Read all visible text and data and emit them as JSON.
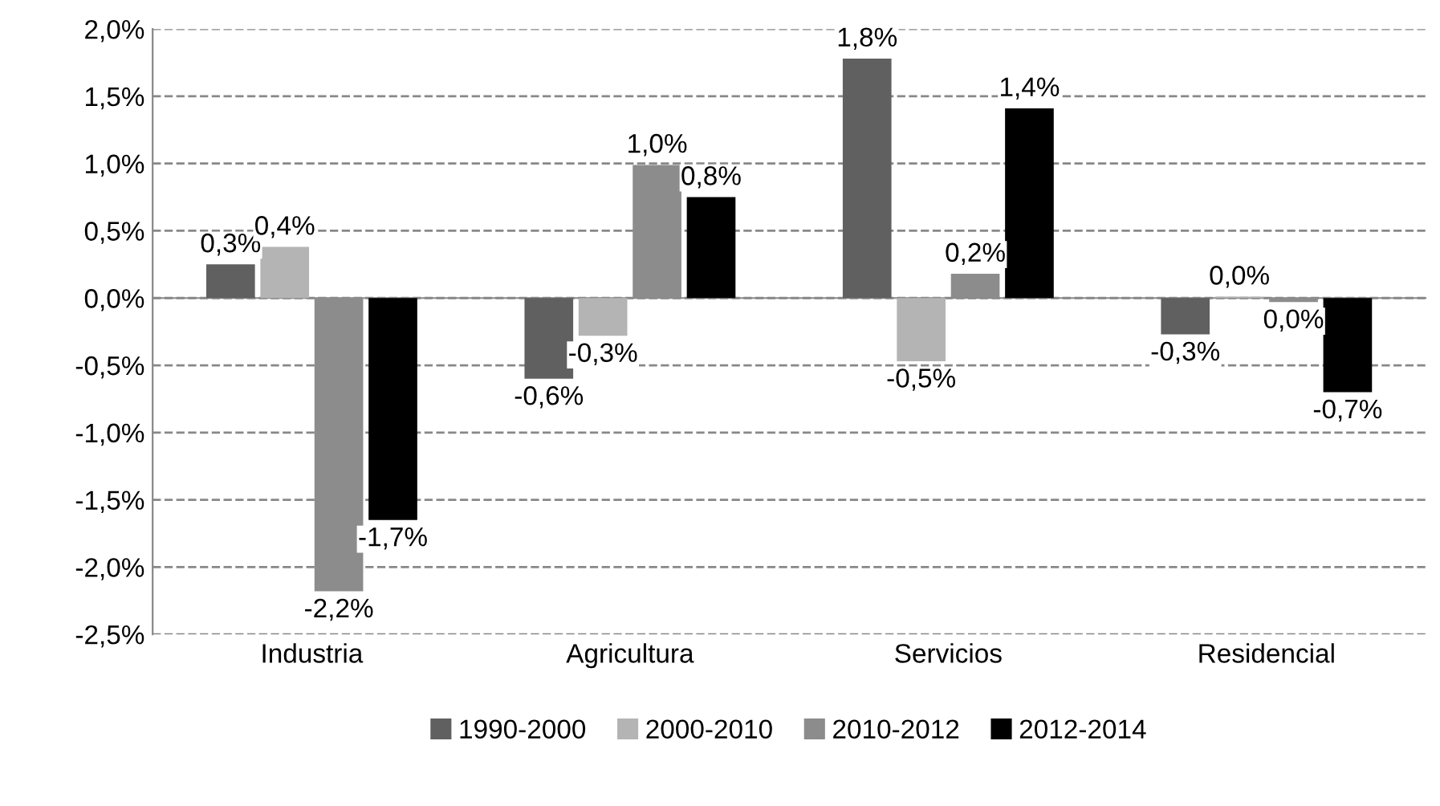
{
  "chart_data": {
    "type": "bar",
    "categories": [
      "Industria",
      "Agricultura",
      "Servicios",
      "Residencial"
    ],
    "series": [
      {
        "name": "1990-2000",
        "color": "#606060",
        "values": [
          0.25,
          -0.6,
          1.78,
          -0.27
        ],
        "value_labels": [
          "0,3%",
          "-0,6%",
          "1,8%",
          "-0,3%"
        ]
      },
      {
        "name": "2000-2010",
        "color": "#b4b4b4",
        "values": [
          0.38,
          -0.28,
          -0.47,
          0.01
        ],
        "value_labels": [
          "0,4%",
          "-0,3%",
          "-0,5%",
          "0,0%"
        ]
      },
      {
        "name": "2010-2012",
        "color": "#8c8c8c",
        "values": [
          -2.18,
          0.99,
          0.18,
          -0.03
        ],
        "value_labels": [
          "-2,2%",
          "1,0%",
          "0,2%",
          "0,0%"
        ]
      },
      {
        "name": "2012-2014",
        "color": "#000000",
        "values": [
          -1.65,
          0.75,
          1.41,
          -0.7
        ],
        "value_labels": [
          "-1,7%",
          "0,8%",
          "1,4%",
          "-0,7%"
        ]
      }
    ],
    "ylim": [
      -2.5,
      2.0
    ],
    "yticks": [
      {
        "value": -2.5,
        "label": "-2,5%"
      },
      {
        "value": -2.0,
        "label": "-2,0%"
      },
      {
        "value": -1.5,
        "label": "-1,5%"
      },
      {
        "value": -1.0,
        "label": "-1,0%"
      },
      {
        "value": -0.5,
        "label": "-0,5%"
      },
      {
        "value": 0.0,
        "label": "0,0%"
      },
      {
        "value": 0.5,
        "label": "0,5%"
      },
      {
        "value": 1.0,
        "label": "1,0%"
      },
      {
        "value": 1.5,
        "label": "1,5%"
      },
      {
        "value": 2.0,
        "label": "2,0%"
      }
    ],
    "grid": "y",
    "legend": "bottom"
  }
}
